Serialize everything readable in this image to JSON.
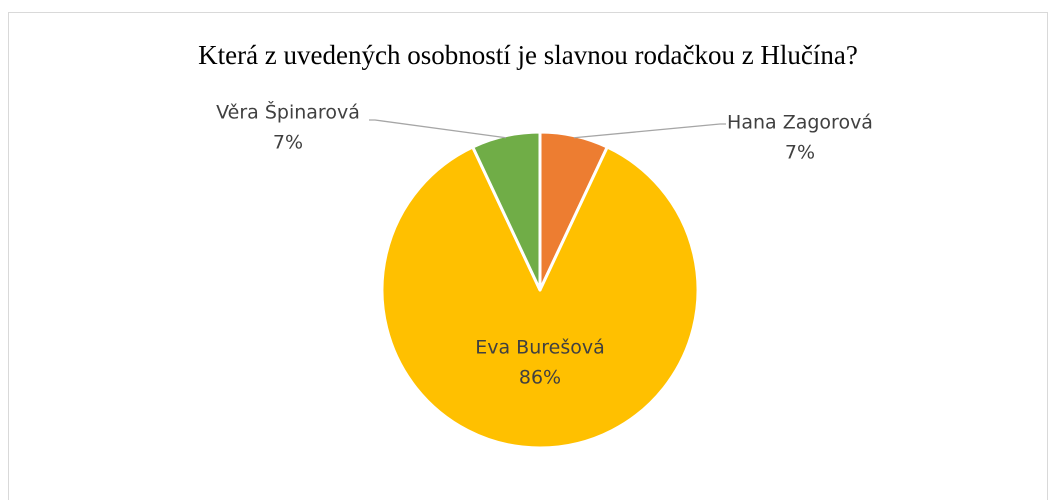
{
  "chart_data": {
    "type": "pie",
    "title": "Která z uvedených osobností je slavnou rodačkou z Hlučína?",
    "categories": [
      "Hana Zagorová",
      "Eva Burešová",
      "Věra Špinarová"
    ],
    "values": [
      7,
      86,
      7
    ],
    "value_labels": [
      "7%",
      "86%",
      "7%"
    ],
    "colors": [
      "#ED7D31",
      "#FFC000",
      "#70AD47"
    ]
  }
}
